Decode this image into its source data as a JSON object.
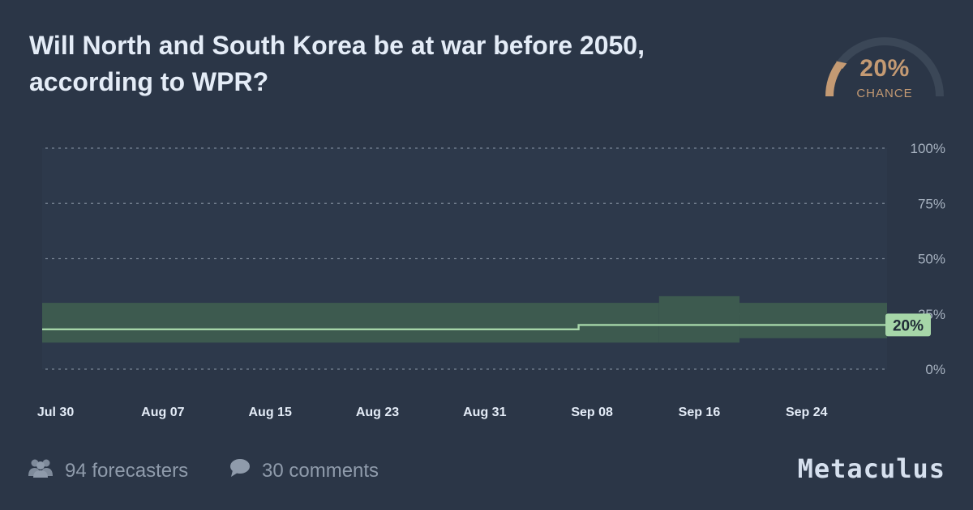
{
  "question": {
    "title": "Will North and South Korea be at war before 2050, according to WPR?"
  },
  "gauge": {
    "value_text": "20%",
    "value": 20,
    "label": "CHANCE",
    "color": "#c49a73"
  },
  "chart_data": {
    "type": "line",
    "y_axis": {
      "range": [
        0,
        100
      ],
      "ticks": [
        {
          "value": 0,
          "label": "0%"
        },
        {
          "value": 25,
          "label": "25%"
        },
        {
          "value": 50,
          "label": "50%"
        },
        {
          "value": 75,
          "label": "75%"
        },
        {
          "value": 100,
          "label": "100%"
        }
      ],
      "position": "right",
      "grid": true
    },
    "x_axis": {
      "range": [
        "2023-07-29",
        "2023-09-30"
      ],
      "ticks": [
        {
          "date": "2023-07-30",
          "label": "Jul 30"
        },
        {
          "date": "2023-08-07",
          "label": "Aug 07"
        },
        {
          "date": "2023-08-15",
          "label": "Aug 15"
        },
        {
          "date": "2023-08-23",
          "label": "Aug 23"
        },
        {
          "date": "2023-08-31",
          "label": "Aug 31"
        },
        {
          "date": "2023-09-08",
          "label": "Sep 08"
        },
        {
          "date": "2023-09-16",
          "label": "Sep 16"
        },
        {
          "date": "2023-09-24",
          "label": "Sep 24"
        }
      ]
    },
    "series": [
      {
        "kind": "step-median",
        "color": "#a6d6a8",
        "points": [
          {
            "date": "2023-07-29",
            "value": 18
          },
          {
            "date": "2023-09-07",
            "value": 18
          },
          {
            "date": "2023-09-07",
            "value": 20
          },
          {
            "date": "2023-09-30",
            "value": 20
          }
        ]
      }
    ],
    "band": {
      "color": "#3d5a4f",
      "segments": [
        {
          "start": "2023-07-29",
          "end": "2023-09-13",
          "low": 12,
          "high": 30
        },
        {
          "start": "2023-09-13",
          "end": "2023-09-19",
          "low": 12,
          "high": 33
        },
        {
          "start": "2023-09-19",
          "end": "2023-09-30",
          "low": 14,
          "high": 30
        }
      ]
    },
    "current": {
      "value": 20,
      "label": "20%"
    }
  },
  "footer": {
    "forecasters": "94 forecasters",
    "comments": "30 comments",
    "brand": "Metaculus"
  }
}
